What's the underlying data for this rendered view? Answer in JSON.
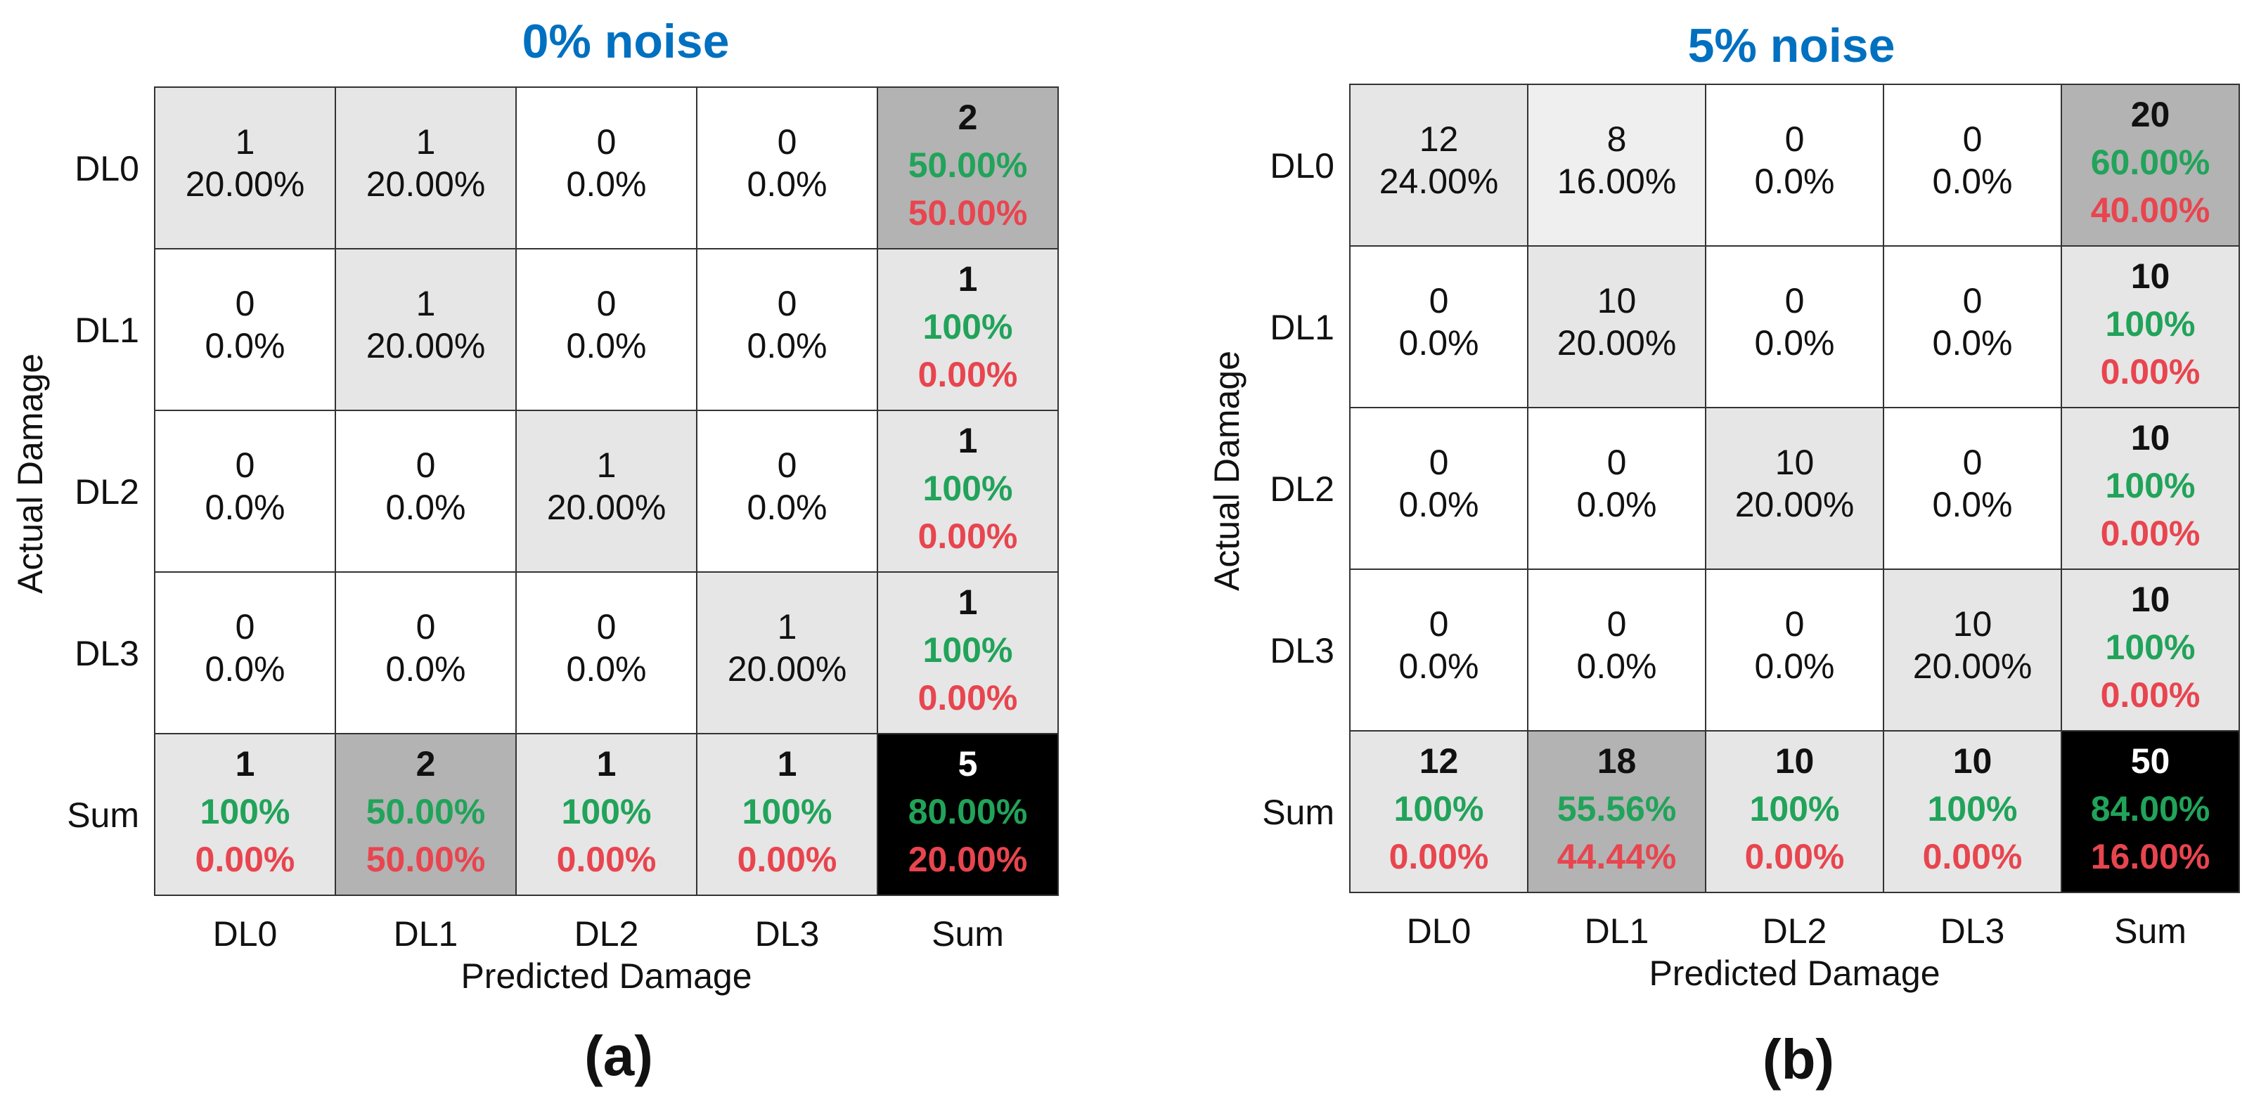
{
  "colors": {
    "title": "#0070c0",
    "green": "#21a35a",
    "red": "#e8454f",
    "grid": "#333333",
    "text": "#111111",
    "shade_light": "#e6e6e6",
    "shade_lighter": "#efefef",
    "shade_mid": "#b3b3b3",
    "shade_dark": "#000000"
  },
  "chart_data": [
    {
      "type": "heatmap",
      "title": "0% noise",
      "panel_label": "(a)",
      "xlabel": "Predicted Damage",
      "ylabel": "Actual Damage",
      "x_categories": [
        "DL0",
        "DL1",
        "DL2",
        "DL3",
        "Sum"
      ],
      "y_categories": [
        "DL0",
        "DL1",
        "DL2",
        "DL3",
        "Sum"
      ],
      "matrix": [
        [
          {
            "count": "1",
            "pct": "20.00%"
          },
          {
            "count": "1",
            "pct": "20.00%"
          },
          {
            "count": "0",
            "pct": "0.0%"
          },
          {
            "count": "0",
            "pct": "0.0%"
          }
        ],
        [
          {
            "count": "0",
            "pct": "0.0%"
          },
          {
            "count": "1",
            "pct": "20.00%"
          },
          {
            "count": "0",
            "pct": "0.0%"
          },
          {
            "count": "0",
            "pct": "0.0%"
          }
        ],
        [
          {
            "count": "0",
            "pct": "0.0%"
          },
          {
            "count": "0",
            "pct": "0.0%"
          },
          {
            "count": "1",
            "pct": "20.00%"
          },
          {
            "count": "0",
            "pct": "0.0%"
          }
        ],
        [
          {
            "count": "0",
            "pct": "0.0%"
          },
          {
            "count": "0",
            "pct": "0.0%"
          },
          {
            "count": "0",
            "pct": "0.0%"
          },
          {
            "count": "1",
            "pct": "20.00%"
          }
        ]
      ],
      "row_sums": [
        {
          "count": "2",
          "correct": "50.00%",
          "error": "50.00%"
        },
        {
          "count": "1",
          "correct": "100%",
          "error": "0.00%"
        },
        {
          "count": "1",
          "correct": "100%",
          "error": "0.00%"
        },
        {
          "count": "1",
          "correct": "100%",
          "error": "0.00%"
        }
      ],
      "col_sums": [
        {
          "count": "1",
          "correct": "100%",
          "error": "0.00%"
        },
        {
          "count": "2",
          "correct": "50.00%",
          "error": "50.00%"
        },
        {
          "count": "1",
          "correct": "100%",
          "error": "0.00%"
        },
        {
          "count": "1",
          "correct": "100%",
          "error": "0.00%"
        }
      ],
      "total": {
        "count": "5",
        "correct": "80.00%",
        "error": "20.00%"
      }
    },
    {
      "type": "heatmap",
      "title": "5% noise",
      "panel_label": "(b)",
      "xlabel": "Predicted Damage",
      "ylabel": "Actual Damage",
      "x_categories": [
        "DL0",
        "DL1",
        "DL2",
        "DL3",
        "Sum"
      ],
      "y_categories": [
        "DL0",
        "DL1",
        "DL2",
        "DL3",
        "Sum"
      ],
      "matrix": [
        [
          {
            "count": "12",
            "pct": "24.00%"
          },
          {
            "count": "8",
            "pct": "16.00%"
          },
          {
            "count": "0",
            "pct": "0.0%"
          },
          {
            "count": "0",
            "pct": "0.0%"
          }
        ],
        [
          {
            "count": "0",
            "pct": "0.0%"
          },
          {
            "count": "10",
            "pct": "20.00%"
          },
          {
            "count": "0",
            "pct": "0.0%"
          },
          {
            "count": "0",
            "pct": "0.0%"
          }
        ],
        [
          {
            "count": "0",
            "pct": "0.0%"
          },
          {
            "count": "0",
            "pct": "0.0%"
          },
          {
            "count": "10",
            "pct": "20.00%"
          },
          {
            "count": "0",
            "pct": "0.0%"
          }
        ],
        [
          {
            "count": "0",
            "pct": "0.0%"
          },
          {
            "count": "0",
            "pct": "0.0%"
          },
          {
            "count": "0",
            "pct": "0.0%"
          },
          {
            "count": "10",
            "pct": "20.00%"
          }
        ]
      ],
      "row_sums": [
        {
          "count": "20",
          "correct": "60.00%",
          "error": "40.00%"
        },
        {
          "count": "10",
          "correct": "100%",
          "error": "0.00%"
        },
        {
          "count": "10",
          "correct": "100%",
          "error": "0.00%"
        },
        {
          "count": "10",
          "correct": "100%",
          "error": "0.00%"
        }
      ],
      "col_sums": [
        {
          "count": "12",
          "correct": "100%",
          "error": "0.00%"
        },
        {
          "count": "18",
          "correct": "55.56%",
          "error": "44.44%"
        },
        {
          "count": "10",
          "correct": "100%",
          "error": "0.00%"
        },
        {
          "count": "10",
          "correct": "100%",
          "error": "0.00%"
        }
      ],
      "total": {
        "count": "50",
        "correct": "84.00%",
        "error": "16.00%"
      }
    }
  ]
}
